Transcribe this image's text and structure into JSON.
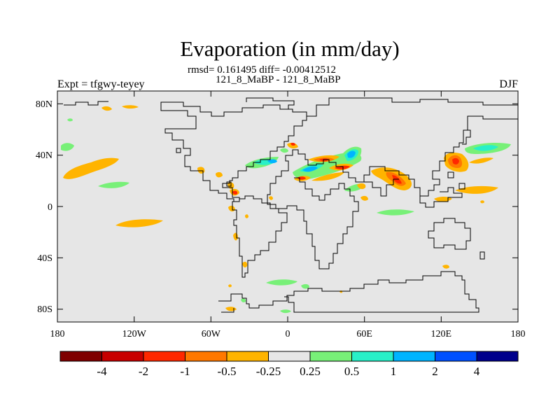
{
  "title": "Evaporation (in mm/day)",
  "stats_line": "rmsd= 0.161495 diff= -0.00412512",
  "subtitle": "121_8_MaBP - 121_8_MaBP",
  "left_label": "Expt = tfgwy-teyey",
  "right_label": "DJF",
  "map": {
    "background_color": "#e6e6e6",
    "lon_range": [
      -180,
      180
    ],
    "lat_range": [
      -90,
      90
    ],
    "x_tick_labels": [
      "180",
      "120W",
      "60W",
      "0",
      "60E",
      "120E",
      "180"
    ],
    "y_tick_labels": [
      "80N",
      "40N",
      "0",
      "40S",
      "80S"
    ]
  },
  "colorbar": {
    "colors": [
      "#7f0000",
      "#c80000",
      "#ff2800",
      "#ff7800",
      "#ffb400",
      "#e6e6e6",
      "#78f078",
      "#28f0c8",
      "#00b4ff",
      "#0050ff",
      "#00008c"
    ],
    "labels": [
      "-4",
      "-2",
      "-1",
      "-0.5",
      "-0.25",
      "0.25",
      "0.5",
      "1",
      "2",
      "4"
    ]
  }
}
